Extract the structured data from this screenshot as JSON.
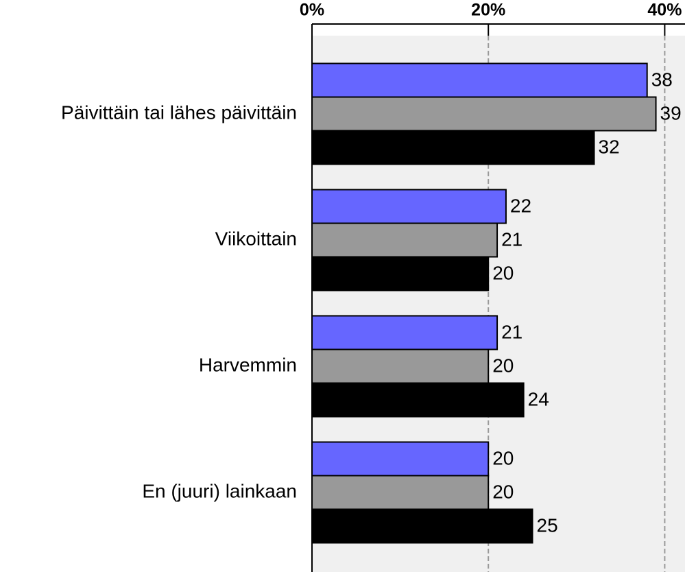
{
  "chart_data": {
    "type": "bar",
    "orientation": "horizontal",
    "categories": [
      "Päivittäin tai lähes päivittäin",
      "Viikoittain",
      "Harvemmin",
      "En (juuri) lainkaan"
    ],
    "series": [
      {
        "color": "#6666ff",
        "values": [
          38,
          22,
          21,
          20
        ]
      },
      {
        "color": "#999999",
        "values": [
          39,
          21,
          20,
          20
        ]
      },
      {
        "color": "#000000",
        "values": [
          32,
          20,
          24,
          25
        ]
      }
    ],
    "xlim": [
      0,
      42.3
    ],
    "xticks": [
      {
        "value": 0,
        "label": "0%"
      },
      {
        "value": 20,
        "label": "20%"
      },
      {
        "value": 40,
        "label": "40%"
      }
    ],
    "grid": true
  }
}
